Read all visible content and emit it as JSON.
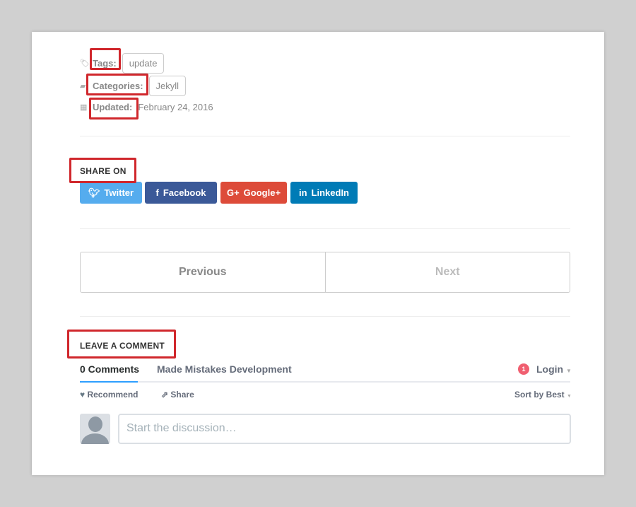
{
  "meta": {
    "tags_label": "Tags:",
    "tags": [
      "update"
    ],
    "categories_label": "Categories:",
    "categories": [
      "Jekyll"
    ],
    "updated_label": "Updated:",
    "updated_date": "February 24, 2016"
  },
  "share": {
    "title": "SHARE ON",
    "buttons": [
      {
        "label": "Twitter",
        "icon": "twitter-icon",
        "color": "#55acee"
      },
      {
        "label": "Facebook",
        "icon": "facebook-icon",
        "color": "#3b5998"
      },
      {
        "label": "Google+",
        "icon": "google-plus-icon",
        "color": "#dd4b39"
      },
      {
        "label": "LinkedIn",
        "icon": "linkedin-icon",
        "color": "#007bb6"
      }
    ]
  },
  "pagination": {
    "previous": "Previous",
    "next": "Next"
  },
  "comments": {
    "title": "LEAVE A COMMENT",
    "count_tab": "0 Comments",
    "site_tab": "Made Mistakes Development",
    "notification_count": "1",
    "login": "Login",
    "recommend": "Recommend",
    "share": "Share",
    "sort": "Sort by Best",
    "placeholder": "Start the discussion…"
  },
  "highlight_color": "#d0272c"
}
